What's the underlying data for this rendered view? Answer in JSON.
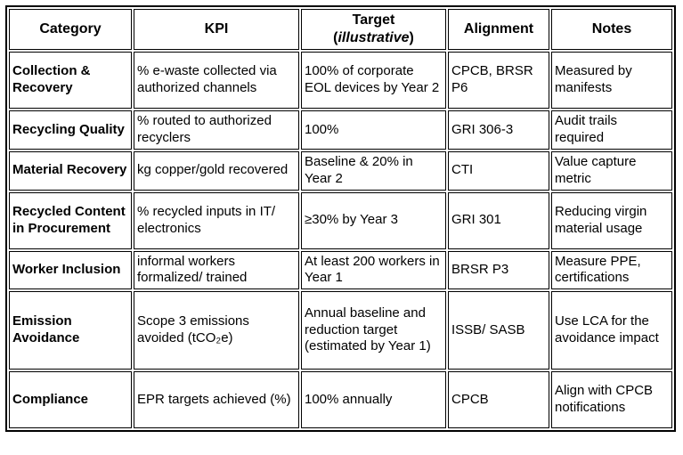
{
  "table": {
    "headers": {
      "category": "Category",
      "kpi": "KPI",
      "target_line1": "Target",
      "target_paren_open": "(",
      "target_italic": "illustrative",
      "target_paren_close": ")",
      "alignment": "Alignment",
      "notes": "Notes"
    },
    "rows": [
      {
        "category": "Collection & Recovery",
        "kpi": "% e-waste collected via authorized channels",
        "target": "100% of corporate EOL devices by Year 2",
        "alignment": "CPCB, BRSR P6",
        "notes": "Measured by manifests"
      },
      {
        "category": "Recycling Quality",
        "kpi": "% routed to authorized recyclers",
        "target": "100%",
        "alignment": "GRI 306-3",
        "notes": "Audit trails required"
      },
      {
        "category": "Material Recovery",
        "kpi": "kg copper/gold recovered",
        "target": "Baseline & 20% in Year 2",
        "alignment": "CTI",
        "notes": "Value capture metric"
      },
      {
        "category": "Recycled Content in Procurement",
        "kpi": "% recycled inputs in IT/ electronics",
        "target": "≥30% by Year 3",
        "alignment": "GRI 301",
        "notes": "Reducing virgin material usage"
      },
      {
        "category": "Worker Inclusion",
        "kpi": "informal workers formalized/ trained",
        "target": "At least 200 workers in Year 1",
        "alignment": "BRSR P3",
        "notes": "Measure PPE, certifications"
      },
      {
        "category": "Emission Avoidance",
        "kpi": "Scope 3 emissions avoided (tCO₂e)",
        "target": "Annual baseline and reduction target (estimated by Year 1)",
        "alignment": "ISSB/ SASB",
        "notes": "Use LCA for the avoidance impact"
      },
      {
        "category": "Compliance",
        "kpi": "EPR targets achieved (%)",
        "target": "100% annually",
        "alignment": "CPCB",
        "notes": "Align with CPCB notifications"
      }
    ]
  }
}
